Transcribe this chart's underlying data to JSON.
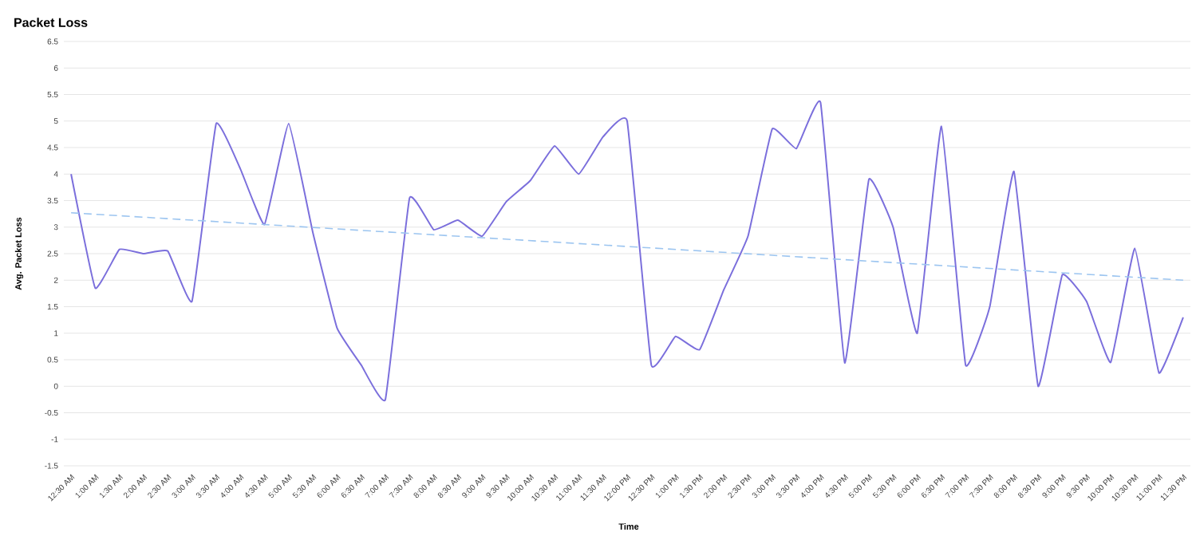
{
  "chart_data": {
    "type": "line",
    "title": "Packet Loss",
    "xlabel": "Time",
    "ylabel": "Avg. Packet Loss",
    "categories": [
      "12:30 AM",
      "1:00 AM",
      "1:30 AM",
      "2:00 AM",
      "2:30 AM",
      "3:00 AM",
      "3:30 AM",
      "4:00 AM",
      "4:30 AM",
      "5:00 AM",
      "5:30 AM",
      "6:00 AM",
      "6:30 AM",
      "7:00 AM",
      "7:30 AM",
      "8:00 AM",
      "8:30 AM",
      "9:00 AM",
      "9:30 AM",
      "10:00 AM",
      "10:30 AM",
      "11:00 AM",
      "11:30 AM",
      "12:00 PM",
      "12:30 PM",
      "1:00 PM",
      "1:30 PM",
      "2:00 PM",
      "2:30 PM",
      "3:00 PM",
      "3:30 PM",
      "4:00 PM",
      "4:30 PM",
      "5:00 PM",
      "5:30 PM",
      "6:00 PM",
      "6:30 PM",
      "7:00 PM",
      "7:30 PM",
      "8:00 PM",
      "8:30 PM",
      "9:00 PM",
      "9:30 PM",
      "10:00 PM",
      "10:30 PM",
      "11:00 PM",
      "11:30 PM"
    ],
    "series": [
      {
        "color": "#7b6fdc",
        "line_style": "solid",
        "values": [
          4.0,
          1.85,
          2.58,
          2.5,
          2.55,
          1.6,
          4.95,
          4.1,
          3.05,
          4.95,
          2.9,
          1.1,
          0.4,
          -0.25,
          3.55,
          2.95,
          3.13,
          2.83,
          3.48,
          3.88,
          4.53,
          4.0,
          4.7,
          5.0,
          0.4,
          0.94,
          0.69,
          1.82,
          2.83,
          4.85,
          4.48,
          5.35,
          0.44,
          3.9,
          3.0,
          1.0,
          4.9,
          0.4,
          1.5,
          4.05,
          0.0,
          2.1,
          1.6,
          0.45,
          2.6,
          0.25,
          1.3
        ]
      },
      {
        "type": "line",
        "color": "#9cc5f0",
        "line_style": "dashed",
        "x": [
          "12:30 AM",
          "11:30 PM"
        ],
        "values": [
          3.27,
          2.0
        ]
      }
    ],
    "ylim": [
      -1.5,
      6.5
    ],
    "yticks": [
      -1.5,
      -1,
      -0.5,
      0,
      0.5,
      1,
      1.5,
      2,
      2.5,
      3,
      3.5,
      4,
      4.5,
      5,
      5.5,
      6,
      6.5
    ],
    "grid": "y",
    "marker": "none"
  }
}
